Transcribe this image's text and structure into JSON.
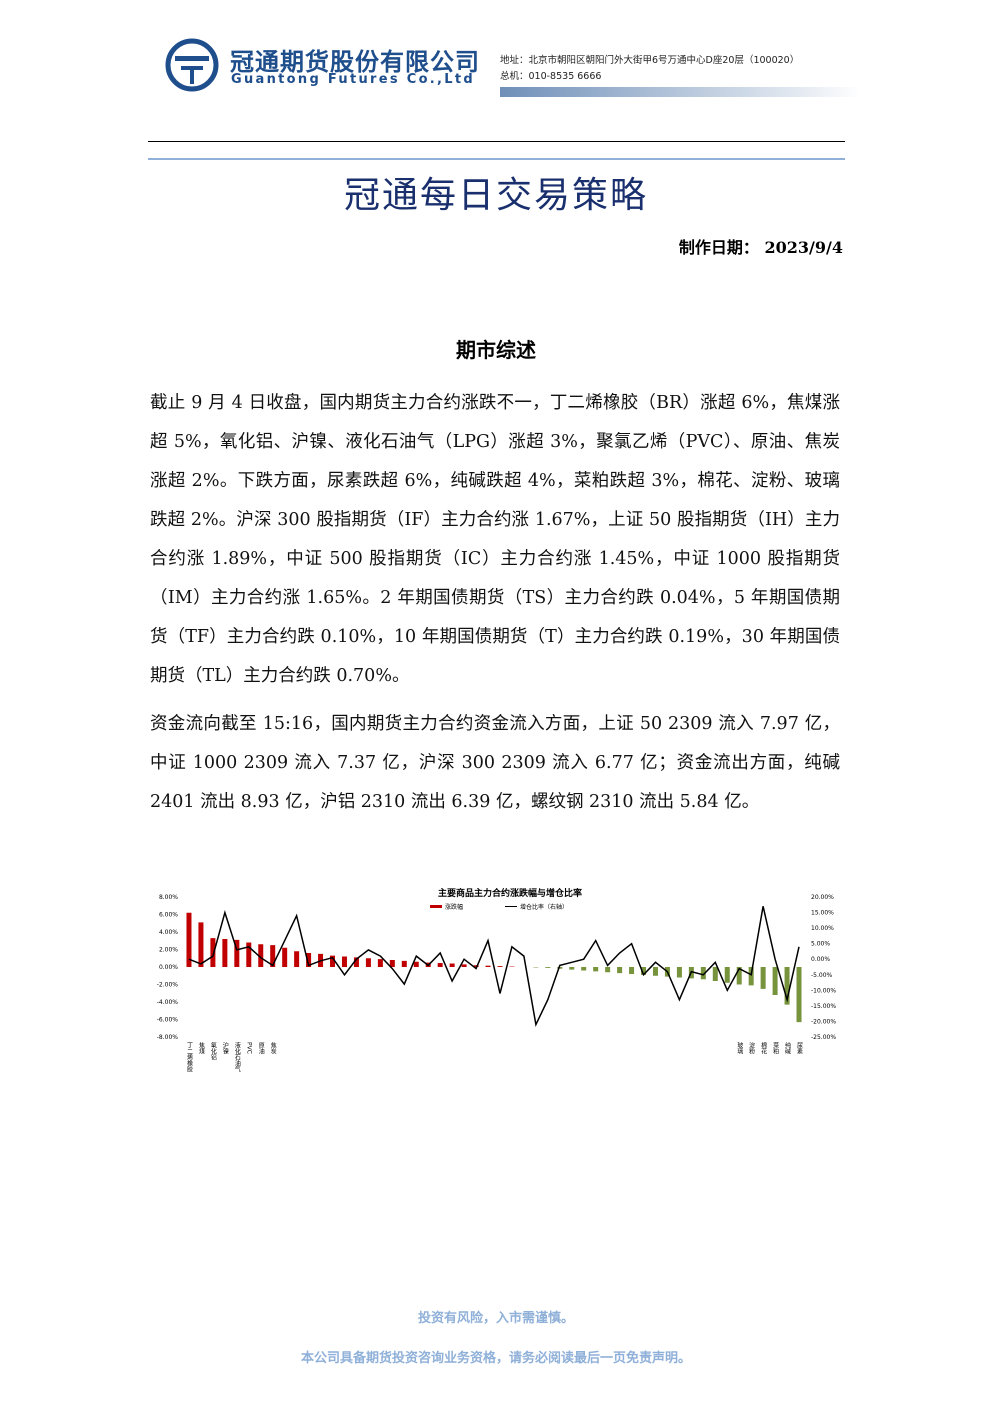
{
  "header": {
    "company_cn": "冠通期货股份有限公司",
    "company_en": "Guantong Futures Co.,Ltd",
    "address": "地址：北京市朝阳区朝阳门外大街甲6号万通中心D座20层（100020）",
    "phone": "总机：010-8535 6666"
  },
  "title": "冠通每日交易策略",
  "date_label": "制作日期：",
  "date": "2023/9/4",
  "section": {
    "heading": "期市综述",
    "paragraphs": [
      "截止 9 月 4 日收盘，国内期货主力合约涨跌不一，丁二烯橡胶（BR）涨超 6%，焦煤涨超 5%，氧化铝、沪镍、液化石油气（LPG）涨超 3%，聚氯乙烯（PVC）、原油、焦炭涨超 2%。下跌方面，尿素跌超 6%，纯碱跌超 4%，菜粕跌超 3%，棉花、淀粉、玻璃跌超 2%。沪深 300 股指期货（IF）主力合约涨 1.67%，上证 50 股指期货（IH）主力合约涨 1.89%，中证 500 股指期货（IC）主力合约涨 1.45%，中证 1000 股指期货（IM）主力合约涨 1.65%。2 年期国债期货（TS）主力合约跌 0.04%，5 年期国债期货（TF）主力合约跌 0.10%，10 年期国债期货（T）主力合约跌 0.19%，30 年期国债期货（TL）主力合约跌 0.70%。",
      "资金流向截至 15:16，国内期货主力合约资金流入方面，上证 50 2309 流入 7.97 亿，中证 1000 2309 流入 7.37 亿，沪深 300 2309 流入 6.77 亿；资金流出方面，纯碱 2401 流出 8.93 亿，沪铝 2310 流出 6.39 亿，螺纹钢 2310 流出 5.84 亿。"
    ]
  },
  "chart_data": {
    "type": "bar_line",
    "title": "主要商品主力合约涨跌幅与增仓比率",
    "categories": [
      "丁二烯橡胶",
      "焦煤",
      "氧化铝",
      "沪镍",
      "液化石油气",
      "PVC",
      "原油",
      "焦炭",
      null,
      null,
      null,
      null,
      null,
      null,
      null,
      null,
      null,
      null,
      null,
      null,
      null,
      null,
      null,
      null,
      null,
      null,
      null,
      null,
      null,
      null,
      null,
      null,
      null,
      null,
      null,
      null,
      null,
      null,
      null,
      null,
      null,
      null,
      null,
      null,
      null,
      null,
      "玻璃",
      "淀粉",
      "棉花",
      "菜粕",
      "纯碱",
      "尿素"
    ],
    "series": [
      {
        "name": "涨跌幅",
        "type": "bar",
        "color": "#c00000",
        "negative_color": "#77933c",
        "values": [
          6.2,
          5.1,
          3.3,
          3.2,
          3.1,
          2.8,
          2.6,
          2.5,
          2.2,
          1.8,
          1.6,
          1.5,
          1.3,
          1.2,
          1.1,
          1.0,
          0.9,
          0.8,
          0.7,
          0.6,
          0.5,
          0.45,
          0.4,
          0.3,
          0.2,
          0.15,
          0.1,
          0.05,
          0,
          -0.05,
          -0.1,
          -0.2,
          -0.3,
          -0.4,
          -0.5,
          -0.6,
          -0.7,
          -0.8,
          -0.9,
          -1.0,
          -1.1,
          -1.2,
          -1.3,
          -1.4,
          -1.6,
          -1.8,
          -2.0,
          -2.1,
          -2.5,
          -3.2,
          -4.3,
          -6.3
        ]
      },
      {
        "name": "增仓比率（右轴）",
        "type": "line",
        "axis": "y2",
        "color": "#000000",
        "values": [
          0,
          -1.5,
          1,
          15,
          3,
          4,
          0.5,
          -2,
          6,
          14,
          -2,
          -0.5,
          0.5,
          -5,
          0,
          3,
          1,
          -3,
          -8,
          1,
          -2,
          2,
          -7,
          0,
          -3,
          6,
          -11,
          4,
          1,
          -21,
          -13,
          -2,
          -1,
          0,
          6,
          -2,
          2,
          5,
          -5,
          -1,
          -4,
          -13,
          -4,
          -5,
          -1,
          -10,
          -3,
          -5,
          17,
          0,
          -13,
          4
        ]
      }
    ],
    "ylim": [
      -8,
      8
    ],
    "yticks": [
      {
        "value": 8,
        "label": "8.00%"
      },
      {
        "value": 6,
        "label": "6.00%"
      },
      {
        "value": 4,
        "label": "4.00%"
      },
      {
        "value": 2,
        "label": "2.00%"
      },
      {
        "value": 0,
        "label": "0.00%"
      },
      {
        "value": -2,
        "label": "-2.00%"
      },
      {
        "value": -4,
        "label": "-4.00%"
      },
      {
        "value": -6,
        "label": "-6.00%"
      },
      {
        "value": -8,
        "label": "-8.00%"
      }
    ],
    "y2lim": [
      -25,
      20
    ],
    "y2ticks": [
      {
        "value": 20,
        "label": "20.00%"
      },
      {
        "value": 15,
        "label": "15.00%"
      },
      {
        "value": 10,
        "label": "10.00%"
      },
      {
        "value": 5,
        "label": "5.00%"
      },
      {
        "value": 0,
        "label": "0.00%"
      },
      {
        "value": -5,
        "label": "-5.00%"
      },
      {
        "value": -10,
        "label": "-10.00%"
      },
      {
        "value": -15,
        "label": "-15.00%"
      },
      {
        "value": -20,
        "label": "-20.00%"
      },
      {
        "value": -25,
        "label": "-25.00%"
      }
    ]
  },
  "footer": {
    "line1": "投资有风险，入市需谨慎。",
    "line2": "本公司具备期货投资咨询业务资格，请务必阅读最后一页免责声明。"
  }
}
